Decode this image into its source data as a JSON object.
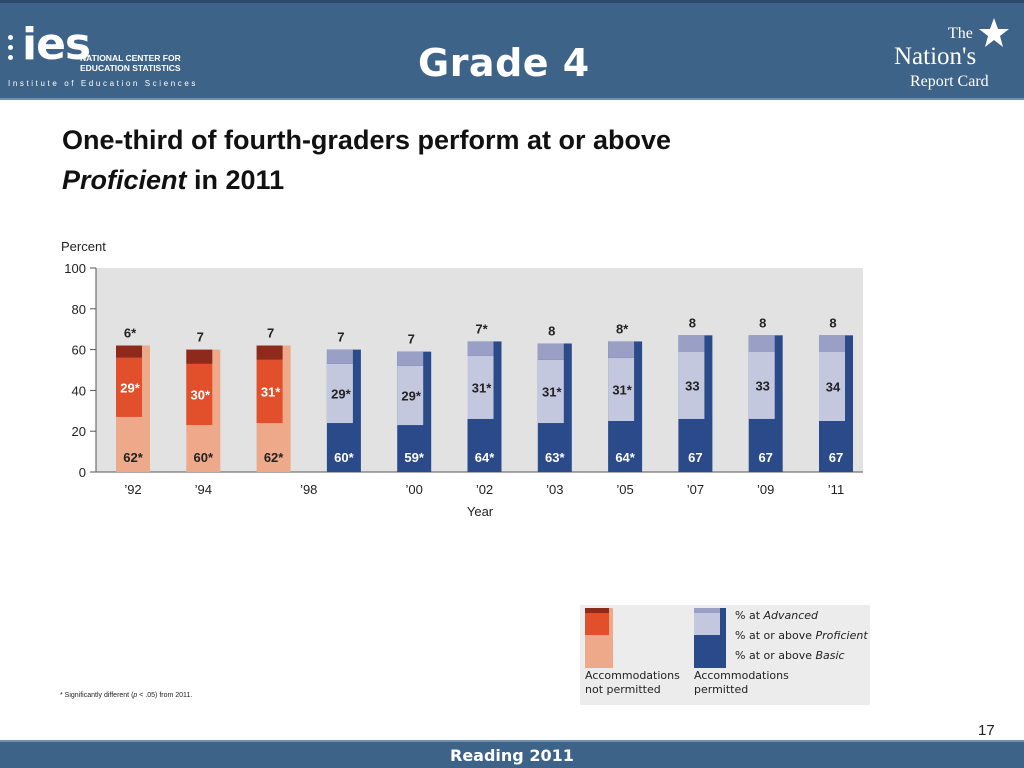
{
  "header": {
    "logo_mark": "ies",
    "logo_name_line1": "NATIONAL CENTER FOR",
    "logo_name_line2": "EDUCATION STATISTICS",
    "logo_subtitle": "Institute of Education Sciences",
    "grade_title": "Grade 4",
    "nrc_the": "The",
    "nrc_nations": "Nation's",
    "nrc_report_card": "Report Card",
    "header_color": "#3e6389"
  },
  "headline": {
    "line1": "One-third of fourth-graders perform at or above",
    "line2_italic": "Proficient",
    "line2_rest": " in 2011"
  },
  "chart_data": {
    "type": "bar",
    "subtype": "stacked",
    "ylabel": "Percent",
    "xlabel": "Year",
    "ylim": [
      0,
      100
    ],
    "yticks": [
      0,
      20,
      40,
      60,
      80,
      100
    ],
    "categories": [
      "’92",
      "’94",
      "’98",
      "’98",
      "’00",
      "’02",
      "’03",
      "’05",
      "’07",
      "’09",
      "’11"
    ],
    "accommodations": [
      "not permitted",
      "not permitted",
      "not permitted",
      "permitted",
      "permitted",
      "permitted",
      "permitted",
      "permitted",
      "permitted",
      "permitted",
      "permitted"
    ],
    "series": [
      {
        "name": "% at or above Basic",
        "values": [
          62,
          60,
          62,
          60,
          59,
          64,
          63,
          64,
          67,
          67,
          67
        ],
        "labels": [
          "62*",
          "60*",
          "62*",
          "60*",
          "59*",
          "64*",
          "63*",
          "64*",
          "67",
          "67",
          "67"
        ]
      },
      {
        "name": "% at or above Proficient",
        "values": [
          29,
          30,
          31,
          29,
          29,
          31,
          31,
          31,
          33,
          33,
          34
        ],
        "labels": [
          "29*",
          "30*",
          "31*",
          "29*",
          "29*",
          "31*",
          "31*",
          "31*",
          "33",
          "33",
          "34"
        ]
      },
      {
        "name": "% at Advanced",
        "values": [
          6,
          7,
          7,
          7,
          7,
          7,
          8,
          8,
          8,
          8,
          8
        ],
        "labels": [
          "6*",
          "7",
          "7",
          "7",
          "7",
          "7*",
          "8",
          "8*",
          "8",
          "8",
          "8"
        ]
      }
    ],
    "colors": {
      "not_permitted_basic": "#eda98a",
      "not_permitted_proficient": "#e2502b",
      "not_permitted_advanced": "#8e2a1c",
      "permitted_basic": "#2b4a8a",
      "permitted_proficient": "#c4c8df",
      "permitted_advanced": "#9a9fc6",
      "plot_background": "#e2e2e2"
    },
    "grid": false
  },
  "legend": {
    "advanced_prefix": "% at ",
    "advanced_em": "Advanced",
    "proficient_prefix": "% at or above ",
    "proficient_em": "Proficient",
    "basic_prefix": "% at or above ",
    "basic_em": "Basic",
    "not_permitted_line1": "Accommodations",
    "not_permitted_line2": "not permitted",
    "permitted_line1": "Accommodations",
    "permitted_line2": "permitted"
  },
  "footnote": {
    "prefix": "* Significantly different (",
    "italic": "p",
    "suffix": " < .05) from 2011."
  },
  "page_number": "17",
  "footer": {
    "text": "Reading 2011"
  }
}
